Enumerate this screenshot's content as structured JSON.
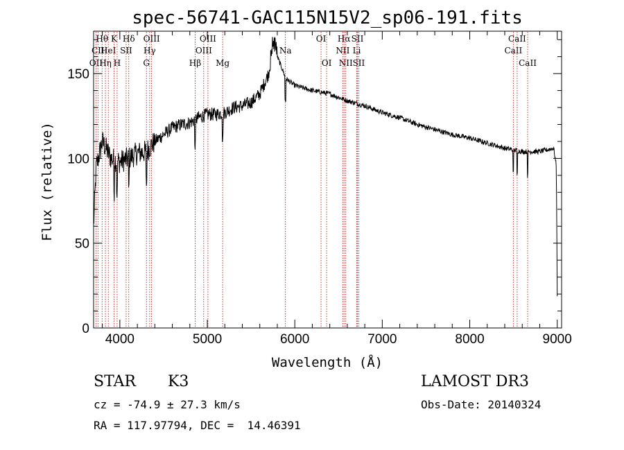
{
  "chart_data": {
    "type": "line",
    "title": "spec-56741-GAC115N15V2_sp06-191.fits",
    "xlabel": "Wavelength (Å)",
    "ylabel": "Flux (relative)",
    "xlim": [
      3700,
      9050
    ],
    "ylim": [
      0,
      175
    ],
    "xticks": [
      4000,
      5000,
      6000,
      7000,
      8000,
      9000
    ],
    "yticks": [
      0,
      50,
      100,
      150
    ],
    "continuum": [
      [
        3700,
        60
      ],
      [
        3730,
        95
      ],
      [
        3800,
        110
      ],
      [
        3900,
        100
      ],
      [
        4000,
        98
      ],
      [
        4100,
        100
      ],
      [
        4200,
        103
      ],
      [
        4300,
        104
      ],
      [
        4400,
        110
      ],
      [
        4500,
        114
      ],
      [
        4600,
        118
      ],
      [
        4700,
        120
      ],
      [
        4800,
        121
      ],
      [
        4900,
        124
      ],
      [
        5000,
        126
      ],
      [
        5100,
        126
      ],
      [
        5200,
        127
      ],
      [
        5300,
        130
      ],
      [
        5400,
        131
      ],
      [
        5500,
        133
      ],
      [
        5600,
        138
      ],
      [
        5700,
        150
      ],
      [
        5760,
        168
      ],
      [
        5800,
        160
      ],
      [
        5900,
        147
      ],
      [
        6000,
        143
      ],
      [
        6200,
        140
      ],
      [
        6400,
        138
      ],
      [
        6600,
        134
      ],
      [
        6800,
        131
      ],
      [
        7000,
        127
      ],
      [
        7200,
        124
      ],
      [
        7400,
        120
      ],
      [
        7600,
        117
      ],
      [
        7800,
        114
      ],
      [
        8000,
        112
      ],
      [
        8200,
        109
      ],
      [
        8400,
        106
      ],
      [
        8600,
        104
      ],
      [
        8800,
        104
      ],
      [
        8960,
        106
      ],
      [
        8990,
        95
      ],
      [
        9000,
        20
      ]
    ],
    "lines": [
      {
        "wave": 3727,
        "label": "OII",
        "row": 2
      },
      {
        "wave": 3750,
        "label": "CII",
        "row": 1
      },
      {
        "wave": 3797,
        "label": "Hθ",
        "row": 0
      },
      {
        "wave": 3835,
        "label": "Hη",
        "row": 2
      },
      {
        "wave": 3868,
        "label": "HeI",
        "row": 1
      },
      {
        "wave": 3934,
        "label": "K",
        "row": 0
      },
      {
        "wave": 3969,
        "label": "H",
        "row": 2
      },
      {
        "wave": 4072,
        "label": "SII",
        "row": 1
      },
      {
        "wave": 4102,
        "label": "Hδ",
        "row": 0
      },
      {
        "wave": 4304,
        "label": "G",
        "row": 2
      },
      {
        "wave": 4341,
        "label": "Hγ",
        "row": 1
      },
      {
        "wave": 4363,
        "label": "OIII",
        "row": 0
      },
      {
        "wave": 4861,
        "label": "Hβ",
        "row": 2
      },
      {
        "wave": 4959,
        "label": "OIII",
        "row": 1
      },
      {
        "wave": 5007,
        "label": "OIII",
        "row": 0
      },
      {
        "wave": 5175,
        "label": "Mg",
        "row": 2
      },
      {
        "wave": 5893,
        "label": "Na",
        "row": 1
      },
      {
        "wave": 6300,
        "label": "OI",
        "row": 0
      },
      {
        "wave": 6364,
        "label": "OI",
        "row": 2
      },
      {
        "wave": 6548,
        "label": "NII",
        "row": 1
      },
      {
        "wave": 6563,
        "label": "Hα",
        "row": 0
      },
      {
        "wave": 6583,
        "label": "NII",
        "row": 2
      },
      {
        "wave": 6708,
        "label": "Li",
        "row": 1
      },
      {
        "wave": 6716,
        "label": "SII",
        "row": 0
      },
      {
        "wave": 6731,
        "label": "SII",
        "row": 2
      },
      {
        "wave": 8498,
        "label": "CaII",
        "row": 1
      },
      {
        "wave": 8542,
        "label": "CaII",
        "row": 0
      },
      {
        "wave": 8662,
        "label": "CaII",
        "row": 2
      }
    ]
  },
  "info": {
    "obj_class": "STAR",
    "subclass": "K3",
    "survey": "LAMOST DR3",
    "cz": "cz = -74.9 ± 27.3 km/s",
    "obs_date": "Obs-Date: 20140324",
    "coords": "RA = 117.97794, DEC =  14.46391"
  },
  "colors": {
    "axis": "#000000",
    "spectrum": "#000000",
    "line_marker": "#c00000"
  }
}
